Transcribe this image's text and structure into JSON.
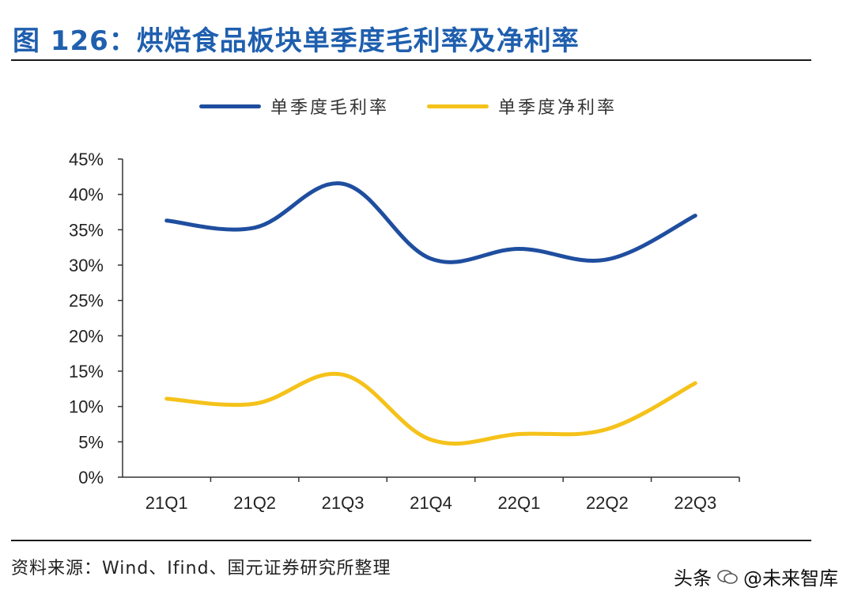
{
  "title": "图 126：烘焙食品板块单季度毛利率及净利率",
  "source": "资料来源：Wind、Ifind、国元证券研究所整理",
  "watermark": {
    "left": "头条",
    "right": "@未来智库"
  },
  "colors": {
    "title": "#1f5fae",
    "gross": "#1f4e9f",
    "net": "#f5c21b"
  },
  "chart_data": {
    "type": "line",
    "title": "",
    "xlabel": "",
    "ylabel": "",
    "categories": [
      "21Q1",
      "21Q2",
      "21Q3",
      "21Q4",
      "22Q1",
      "22Q2",
      "22Q3"
    ],
    "yticks": [
      "0%",
      "5%",
      "10%",
      "15%",
      "20%",
      "25%",
      "30%",
      "35%",
      "40%",
      "45%"
    ],
    "ylim": [
      0,
      45
    ],
    "legend_position": "top",
    "series": [
      {
        "name": "单季度毛利率",
        "color": "#1f4e9f",
        "values": [
          36.3,
          35.3,
          41.5,
          30.9,
          32.3,
          30.8,
          37.0
        ]
      },
      {
        "name": "单季度净利率",
        "color": "#f5c21b",
        "values": [
          11.1,
          10.4,
          14.5,
          5.3,
          6.1,
          6.8,
          13.3
        ]
      }
    ]
  }
}
